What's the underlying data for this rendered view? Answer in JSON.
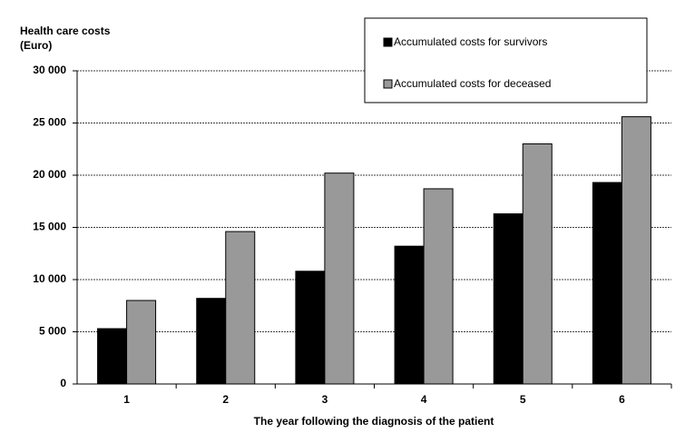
{
  "chart_data": {
    "type": "bar",
    "y_label": "Health care costs (Euro)",
    "x_label": "The year following the diagnosis of the patient",
    "categories": [
      "1",
      "2",
      "3",
      "4",
      "5",
      "6"
    ],
    "series": [
      {
        "name": "Accumulated costs for survivors",
        "color": "#000000",
        "values": [
          5300,
          8200,
          10800,
          13200,
          16300,
          19300
        ]
      },
      {
        "name": "Accumulated costs for deceased",
        "color": "#999999",
        "values": [
          8000,
          14600,
          20200,
          18700,
          23000,
          25600
        ]
      }
    ],
    "ylim": [
      0,
      30000
    ],
    "yticks": [
      0,
      {
        "value": 5000,
        "label": "5 000"
      },
      {
        "value": 10000,
        "label": "10 000"
      },
      {
        "value": 15000,
        "label": "15 000"
      },
      {
        "value": 20000,
        "label": "20 000"
      },
      {
        "value": 25000,
        "label": "25 000"
      },
      {
        "value": 30000,
        "label": "30 000"
      }
    ],
    "grid": true
  }
}
